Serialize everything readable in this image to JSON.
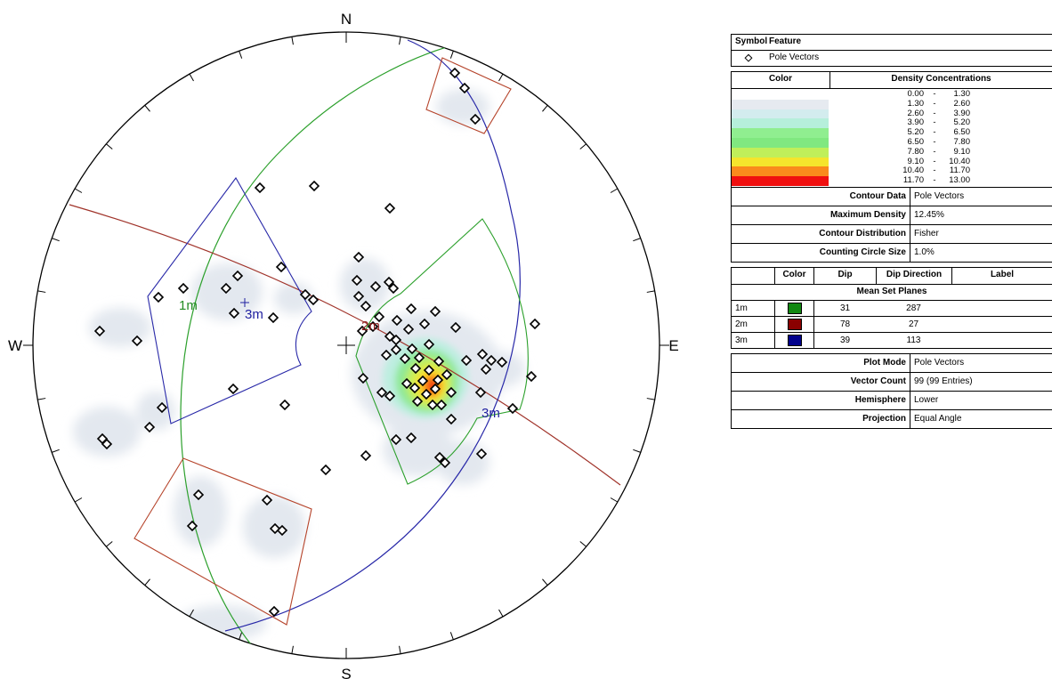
{
  "stereonet": {
    "compass": {
      "north": "N",
      "south": "S",
      "east": "E",
      "west": "W"
    },
    "set_labels": [
      {
        "text": "1m",
        "color": "#228b22"
      },
      {
        "text": "2m",
        "color": "#8b1a1a"
      },
      {
        "text": "3m",
        "color": "#1f1fa0"
      },
      {
        "text": "3m",
        "color": "#1f1fa0"
      }
    ],
    "colors": {
      "set1": "#2ca02c",
      "set2": "#a0332a",
      "set3": "#2828a8",
      "window_red": "#b5432a"
    }
  },
  "legend": {
    "symbol_table": {
      "headers": {
        "symbol": "Symbol",
        "feature": "Feature"
      },
      "rows": [
        {
          "symbol": "◇",
          "feature": "Pole Vectors"
        }
      ]
    },
    "density": {
      "headers": {
        "color": "Color",
        "concentrations": "Density Concentrations"
      },
      "rows": [
        {
          "color": "#ffffff",
          "low": "0.00",
          "high": "1.30"
        },
        {
          "color": "#e6eaf0",
          "low": "1.30",
          "high": "2.60"
        },
        {
          "color": "#d3ecee",
          "low": "2.60",
          "high": "3.90"
        },
        {
          "color": "#b6efdb",
          "low": "3.90",
          "high": "5.20"
        },
        {
          "color": "#90ee90",
          "low": "5.20",
          "high": "6.50"
        },
        {
          "color": "#80e880",
          "low": "6.50",
          "high": "7.80"
        },
        {
          "color": "#c0ef5a",
          "low": "7.80",
          "high": "9.10"
        },
        {
          "color": "#f5e52c",
          "low": "9.10",
          "high": "10.40"
        },
        {
          "color": "#fa8a1c",
          "low": "10.40",
          "high": "11.70"
        },
        {
          "color": "#f00f0f",
          "low": "11.70",
          "high": "13.00"
        }
      ],
      "separator": "-"
    },
    "contour_info": [
      {
        "label": "Contour Data",
        "value": "Pole Vectors"
      },
      {
        "label": "Maximum Density",
        "value": "12.45%"
      },
      {
        "label": "Contour Distribution",
        "value": "Fisher"
      },
      {
        "label": "Counting Circle Size",
        "value": "1.0%"
      }
    ],
    "sets_table": {
      "headers": {
        "color": "Color",
        "dip": "Dip",
        "dip_direction": "Dip Direction",
        "label": "Label"
      },
      "title": "Mean Set Planes",
      "rows": [
        {
          "id": "1m",
          "color": "#118811",
          "dip": "31",
          "dip_direction": "287"
        },
        {
          "id": "2m",
          "color": "#8b0000",
          "dip": "78",
          "dip_direction": "27"
        },
        {
          "id": "3m",
          "color": "#00008b",
          "dip": "39",
          "dip_direction": "113"
        }
      ]
    },
    "plot_info": [
      {
        "label": "Plot Mode",
        "value": "Pole Vectors"
      },
      {
        "label": "Vector Count",
        "value": "99 (99 Entries)"
      },
      {
        "label": "Hemisphere",
        "value": "Lower"
      },
      {
        "label": "Projection",
        "value": "Equal Angle"
      }
    ]
  }
}
